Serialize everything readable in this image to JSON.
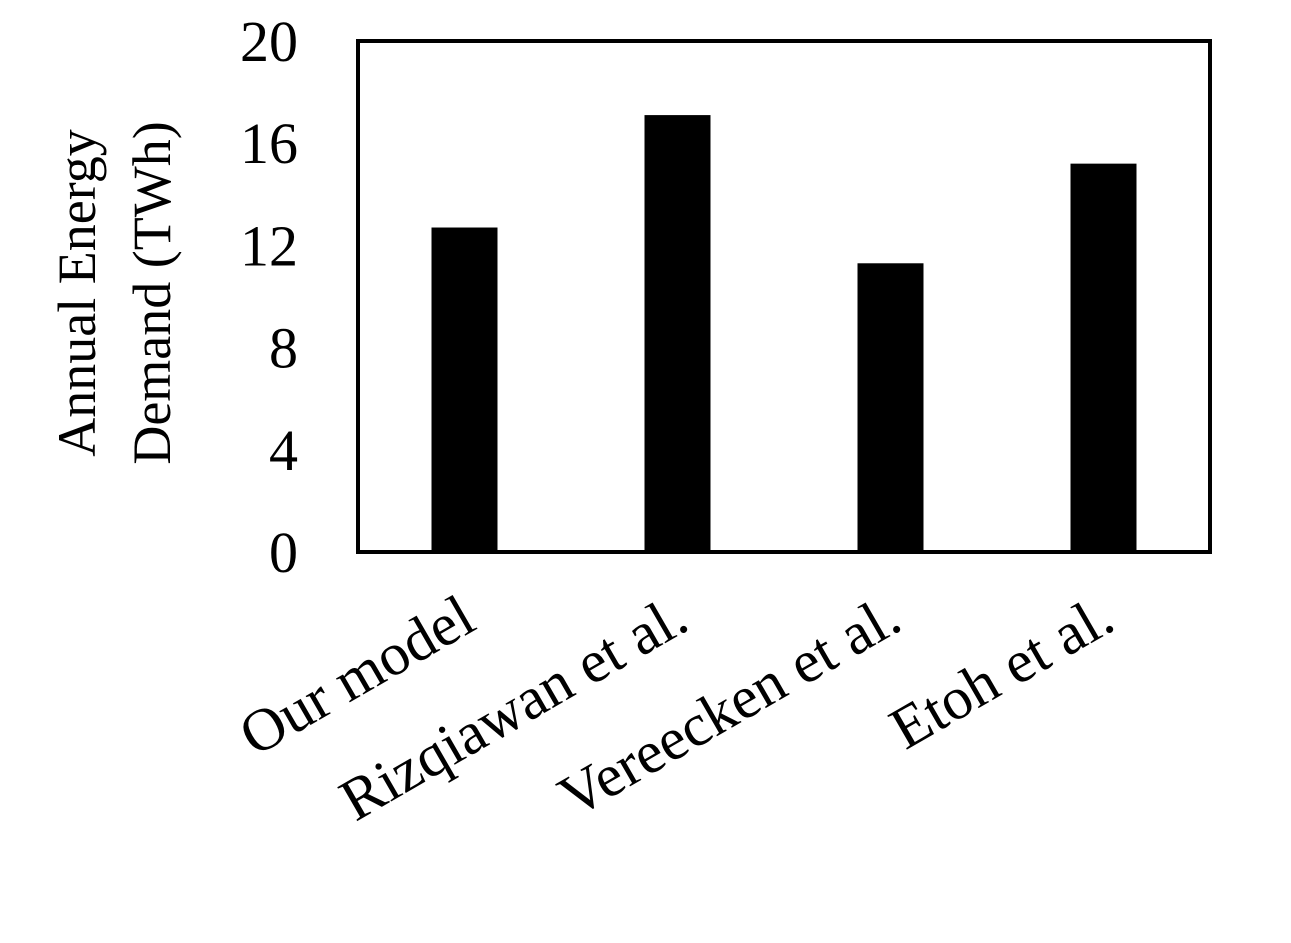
{
  "chart_data": {
    "type": "bar",
    "title": "",
    "xlabel": "",
    "ylabel_lines": [
      "Annual Energy",
      "Demand (TWh)"
    ],
    "categories": [
      "Our model",
      "Rizqiawan et al.",
      "Vereecken et al.",
      "Etoh et al."
    ],
    "values": [
      12.7,
      17.1,
      11.3,
      15.2
    ],
    "ylim": [
      0,
      20
    ],
    "yticks": [
      0,
      4,
      8,
      12,
      16,
      20
    ],
    "grid": false,
    "legend": "none",
    "bar_color": "#000000",
    "axis_color": "#000000"
  }
}
